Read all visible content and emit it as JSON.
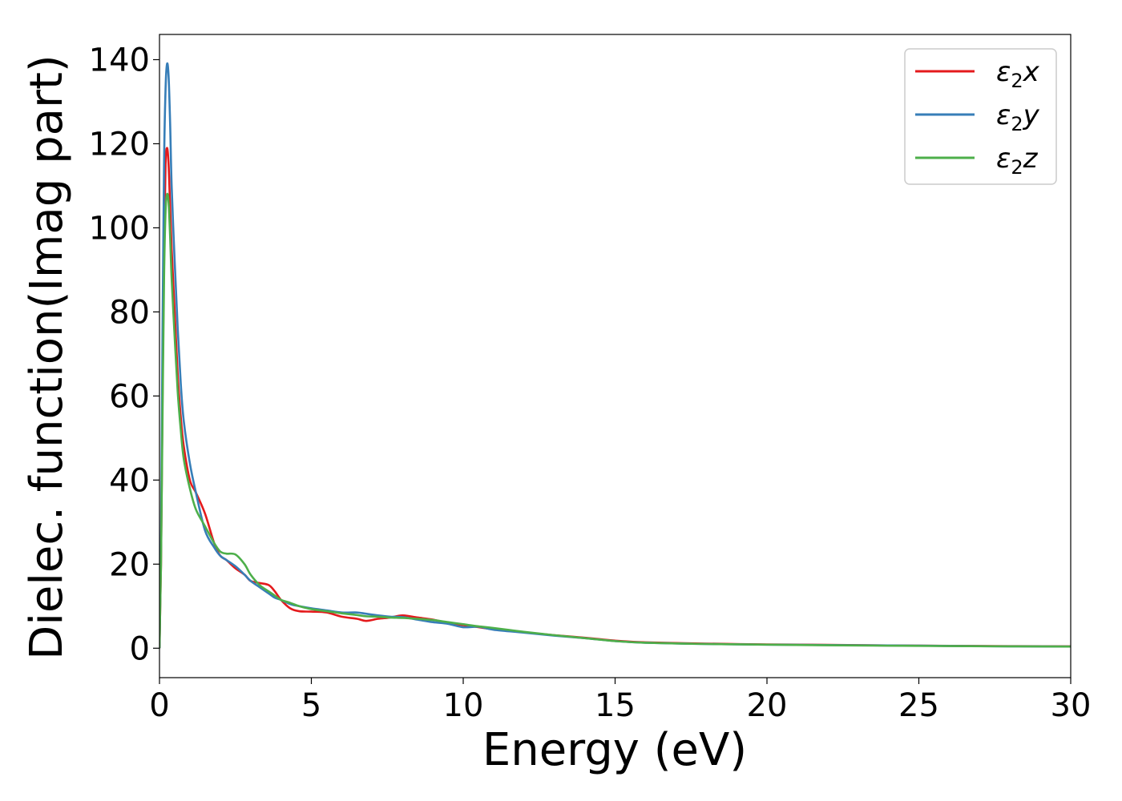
{
  "chart_data": {
    "type": "line",
    "title": "",
    "xlabel": "Energy (eV)",
    "ylabel": "Dielec. function(Imag part)",
    "xlim": [
      0,
      30
    ],
    "ylim": [
      -7,
      146
    ],
    "xticks": [
      0,
      5,
      10,
      15,
      20,
      25,
      30
    ],
    "yticks": [
      0,
      20,
      40,
      60,
      80,
      100,
      120,
      140
    ],
    "grid": false,
    "legend_position": "top-right",
    "series": [
      {
        "name": "ε2x",
        "legend_main": "ε",
        "legend_sub": "2",
        "legend_var": "x",
        "color": "#e41a1c",
        "x": [
          0,
          0.05,
          0.1,
          0.15,
          0.2,
          0.25,
          0.3,
          0.35,
          0.4,
          0.5,
          0.6,
          0.7,
          0.8,
          1.0,
          1.2,
          1.5,
          1.8,
          2.0,
          2.2,
          2.5,
          2.8,
          3.0,
          3.3,
          3.6,
          3.8,
          4.0,
          4.3,
          4.6,
          5.0,
          5.5,
          6.0,
          6.5,
          6.8,
          7.2,
          7.6,
          8.0,
          8.5,
          9.0,
          9.5,
          10.0,
          10.5,
          11.0,
          12.0,
          13.0,
          14.0,
          15.0,
          16.0,
          18.0,
          20.0,
          22.0,
          25.0,
          28.0,
          30.0
        ],
        "y": [
          0,
          20,
          60,
          95,
          115,
          119,
          115,
          105,
          95,
          80,
          65,
          55,
          48,
          40,
          37,
          32,
          25,
          22,
          21,
          19,
          17.5,
          16,
          15.5,
          15,
          13.5,
          11.5,
          9.5,
          8.8,
          8.7,
          8.5,
          7.5,
          7,
          6.5,
          7,
          7.3,
          7.8,
          7.3,
          6.8,
          6,
          5.5,
          5,
          4.5,
          3.8,
          3.1,
          2.5,
          1.8,
          1.4,
          1.1,
          0.9,
          0.8,
          0.6,
          0.5,
          0.45
        ]
      },
      {
        "name": "ε2y",
        "legend_main": "ε",
        "legend_sub": "2",
        "legend_var": "y",
        "color": "#377eb8",
        "x": [
          0,
          0.05,
          0.1,
          0.15,
          0.2,
          0.25,
          0.3,
          0.35,
          0.4,
          0.5,
          0.6,
          0.7,
          0.8,
          1.0,
          1.2,
          1.5,
          1.8,
          2.0,
          2.2,
          2.5,
          2.8,
          3.0,
          3.3,
          3.6,
          3.8,
          4.0,
          4.3,
          4.6,
          5.0,
          5.5,
          6.0,
          6.5,
          6.8,
          7.2,
          7.6,
          8.0,
          8.5,
          9.0,
          9.5,
          10.0,
          10.5,
          11.0,
          12.0,
          13.0,
          14.0,
          15.0,
          16.0,
          18.0,
          20.0,
          22.0,
          25.0,
          28.0,
          30.0
        ],
        "y": [
          0,
          25,
          75,
          115,
          133,
          139,
          136,
          125,
          110,
          92,
          76,
          63,
          54,
          44,
          37,
          28,
          24,
          22,
          21,
          19.5,
          17.5,
          16,
          14.5,
          13,
          12,
          11.5,
          10.5,
          10,
          9.5,
          9,
          8.5,
          8.5,
          8.2,
          7.8,
          7.5,
          7.4,
          6.8,
          6.2,
          5.8,
          5,
          5.1,
          4.4,
          3.7,
          3,
          2.4,
          1.7,
          1.3,
          1.0,
          0.85,
          0.75,
          0.6,
          0.45,
          0.4
        ]
      },
      {
        "name": "ε2z",
        "legend_main": "ε",
        "legend_sub": "2",
        "legend_var": "z",
        "color": "#4daf4a",
        "x": [
          0,
          0.05,
          0.1,
          0.15,
          0.2,
          0.25,
          0.3,
          0.35,
          0.4,
          0.5,
          0.6,
          0.7,
          0.8,
          1.0,
          1.2,
          1.5,
          1.8,
          2.0,
          2.2,
          2.5,
          2.8,
          3.0,
          3.3,
          3.6,
          3.8,
          4.0,
          4.3,
          4.6,
          5.0,
          5.5,
          6.0,
          6.5,
          6.8,
          7.2,
          7.6,
          8.0,
          8.5,
          9.0,
          9.5,
          10.0,
          10.5,
          11.0,
          12.0,
          13.0,
          14.0,
          15.0,
          16.0,
          18.0,
          20.0,
          22.0,
          25.0,
          28.0,
          30.0
        ],
        "y": [
          0,
          20,
          55,
          88,
          104,
          108,
          106,
          98,
          88,
          74,
          61,
          52,
          45,
          38,
          33,
          29,
          25,
          23,
          22.5,
          22.3,
          20,
          17.5,
          15,
          13.5,
          12.5,
          11.5,
          10.8,
          10,
          9.3,
          8.8,
          8.3,
          7.9,
          7.6,
          7.5,
          7.3,
          7.2,
          7,
          6.7,
          6.2,
          5.7,
          5.2,
          4.8,
          3.9,
          3.1,
          2.4,
          1.7,
          1.3,
          1.0,
          0.85,
          0.7,
          0.55,
          0.45,
          0.4
        ]
      }
    ]
  }
}
